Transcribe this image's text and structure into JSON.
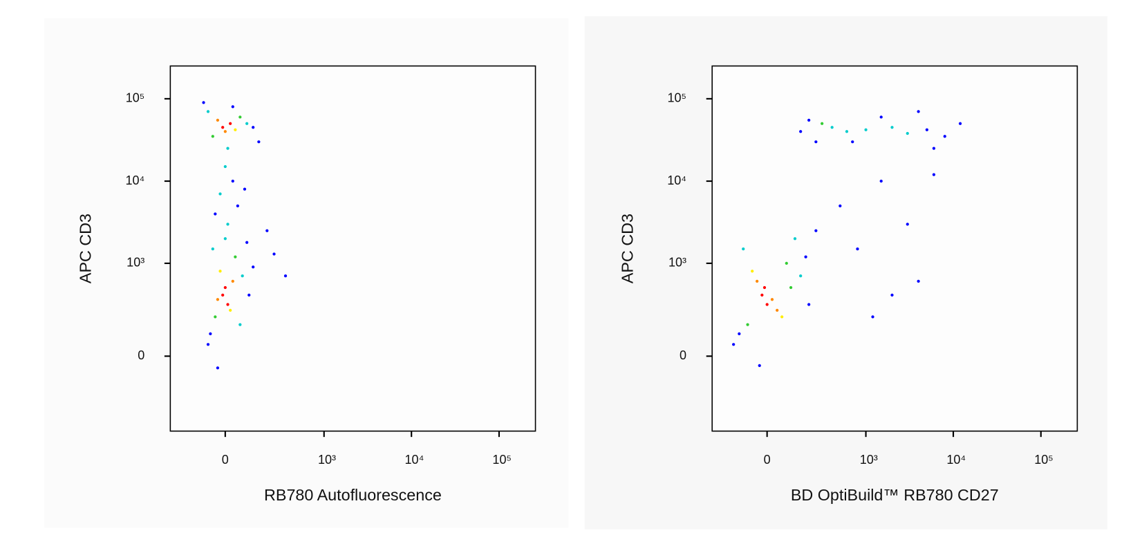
{
  "chart_data": [
    {
      "type": "scatter",
      "xlabel": "RB780 Autofluorescence",
      "ylabel": "APC CD3",
      "xscale": "biexponential",
      "yscale": "biexponential",
      "xlim": [
        -300,
        260000
      ],
      "ylim": [
        -600,
        250000
      ],
      "xticks": [
        0,
        {
          "value": 1000,
          "label": "10³"
        },
        {
          "value": 10000,
          "label": "10⁴"
        },
        {
          "value": 100000,
          "label": "10⁵"
        }
      ],
      "yticks": [
        0,
        {
          "value": 1000,
          "label": "10³"
        },
        {
          "value": 10000,
          "label": "10⁴"
        },
        {
          "value": 100000,
          "label": "10⁵"
        }
      ],
      "x": [
        -10,
        20,
        0,
        -30,
        40,
        60,
        -50,
        90,
        -70,
        120,
        -90,
        150,
        30,
        10,
        0,
        30,
        -20,
        50,
        -40,
        10,
        80,
        200,
        -10,
        10,
        0,
        -30,
        30,
        -20,
        20,
        40,
        -40,
        -50,
        60,
        70,
        -60,
        100,
        120,
        -70,
        0,
        90,
        -30,
        350,
        250
      ],
      "y": [
        45000,
        50000,
        40000,
        55000,
        42000,
        60000,
        35000,
        50000,
        70000,
        45000,
        90000,
        30000,
        80000,
        25000,
        15000,
        10000,
        7000,
        5000,
        4000,
        3000,
        8000,
        2500,
        400,
        300,
        500,
        350,
        600,
        800,
        250,
        1200,
        200,
        1500,
        150,
        700,
        100,
        400,
        900,
        50,
        2000,
        1800,
        -50,
        700,
        1300
      ],
      "colors": [
        "#ff0000",
        "#ff0000",
        "#ff8800",
        "#ff8800",
        "#ffee00",
        "#33cc33",
        "#33cc33",
        "#00cccc",
        "#00cccc",
        "#0000ff",
        "#0000ff",
        "#0000ff",
        "#0000ff",
        "#00cccc",
        "#00cccc",
        "#0000ff",
        "#00cccc",
        "#0000ff",
        "#0000ff",
        "#00cccc",
        "#0000ff",
        "#0000ff",
        "#ff0000",
        "#ff0000",
        "#ff0000",
        "#ff8800",
        "#ff8800",
        "#ffee00",
        "#ffee00",
        "#33cc33",
        "#33cc33",
        "#00cccc",
        "#00cccc",
        "#00cccc",
        "#0000ff",
        "#0000ff",
        "#0000ff",
        "#0000ff",
        "#00cccc",
        "#0000ff",
        "#0000ff",
        "#0000ff",
        "#0000ff"
      ]
    },
    {
      "type": "scatter",
      "xlabel": "BD OptiBuild™ RB780 CD27",
      "ylabel": "APC CD3",
      "xscale": "biexponential",
      "yscale": "biexponential",
      "xlim": [
        -300,
        260000
      ],
      "ylim": [
        -600,
        250000
      ],
      "xticks": [
        0,
        {
          "value": 1000,
          "label": "10³"
        },
        {
          "value": 10000,
          "label": "10⁴"
        },
        {
          "value": 100000,
          "label": "10⁵"
        }
      ],
      "yticks": [
        0,
        {
          "value": 1000,
          "label": "10³"
        },
        {
          "value": 10000,
          "label": "10⁴"
        },
        {
          "value": 100000,
          "label": "10⁵"
        }
      ],
      "x": [
        -20,
        0,
        -10,
        20,
        -40,
        40,
        -60,
        60,
        80,
        -80,
        100,
        -100,
        150,
        120,
        -120,
        200,
        180,
        -30,
        250,
        -150,
        400,
        600,
        300,
        1000,
        2000,
        3000,
        5000,
        8000,
        200,
        150,
        1500,
        12000,
        700,
        4000,
        250,
        6000,
        500,
        1500,
        3000,
        800,
        4000,
        2000,
        6000,
        1200
      ],
      "y": [
        400,
        300,
        500,
        350,
        600,
        250,
        800,
        200,
        1000,
        150,
        500,
        1500,
        700,
        2000,
        100,
        300,
        1200,
        -40,
        2500,
        50,
        45000,
        40000,
        50000,
        42000,
        45000,
        38000,
        42000,
        35000,
        55000,
        40000,
        60000,
        50000,
        30000,
        70000,
        30000,
        25000,
        5000,
        10000,
        3000,
        1500,
        600,
        400,
        12000,
        200
      ],
      "colors": [
        "#ff0000",
        "#ff0000",
        "#ff0000",
        "#ff8800",
        "#ff8800",
        "#ff8800",
        "#ffee00",
        "#ffee00",
        "#33cc33",
        "#33cc33",
        "#33cc33",
        "#00cccc",
        "#00cccc",
        "#00cccc",
        "#0000ff",
        "#0000ff",
        "#0000ff",
        "#0000ff",
        "#0000ff",
        "#0000ff",
        "#00cccc",
        "#00cccc",
        "#33cc33",
        "#00cccc",
        "#00cccc",
        "#00cccc",
        "#0000ff",
        "#0000ff",
        "#0000ff",
        "#0000ff",
        "#0000ff",
        "#0000ff",
        "#0000ff",
        "#0000ff",
        "#0000ff",
        "#0000ff",
        "#0000ff",
        "#0000ff",
        "#0000ff",
        "#0000ff",
        "#0000ff",
        "#0000ff",
        "#0000ff",
        "#0000ff"
      ]
    }
  ]
}
